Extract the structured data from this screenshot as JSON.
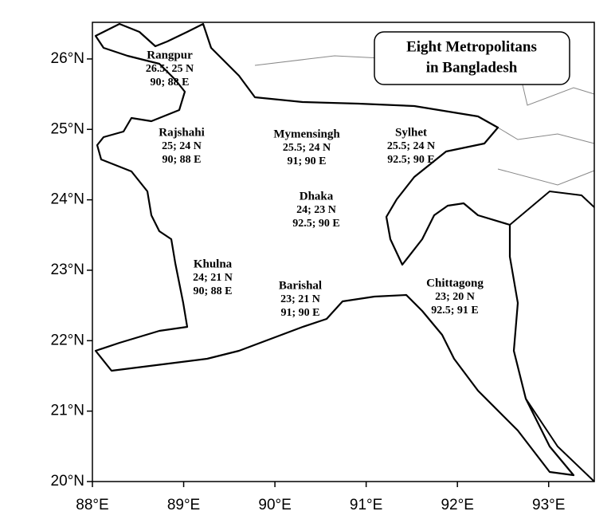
{
  "map": {
    "title": [
      "Eight Metropolitans",
      "in Bangladesh"
    ],
    "xlim": [
      88,
      93.5
    ],
    "ylim": [
      20,
      26.52
    ],
    "xticks": [
      {
        "value": 88,
        "label": "88°E"
      },
      {
        "value": 89,
        "label": "89°E"
      },
      {
        "value": 90,
        "label": "90°E"
      },
      {
        "value": 91,
        "label": "91°E"
      },
      {
        "value": 92,
        "label": "92°E"
      },
      {
        "value": 93,
        "label": "93°E"
      }
    ],
    "yticks": [
      {
        "value": 20,
        "label": "20°N"
      },
      {
        "value": 21,
        "label": "21°N"
      },
      {
        "value": 22,
        "label": "22°N"
      },
      {
        "value": 23,
        "label": "23°N"
      },
      {
        "value": 24,
        "label": "24°N"
      },
      {
        "value": 25,
        "label": "25°N"
      },
      {
        "value": 26,
        "label": "26°N"
      }
    ],
    "cities": [
      {
        "name": "Rangpur",
        "lat": "26.5; 25 N",
        "lon": "90; 88 E"
      },
      {
        "name": "Rajshahi",
        "lat": "25; 24 N",
        "lon": "90; 88 E"
      },
      {
        "name": "Mymensingh",
        "lat": "25.5; 24 N",
        "lon": "91; 90 E"
      },
      {
        "name": "Sylhet",
        "lat": "25.5; 24 N",
        "lon": "92.5; 90 E"
      },
      {
        "name": "Dhaka",
        "lat": "24; 23 N",
        "lon": "92.5; 90 E"
      },
      {
        "name": "Khulna",
        "lat": "24; 21 N",
        "lon": "90; 88 E"
      },
      {
        "name": "Barishal",
        "lat": "23; 21 N",
        "lon": "91; 90 E"
      },
      {
        "name": "Chittagong",
        "lat": "23; 20 N",
        "lon": "92.5; 91 E"
      }
    ]
  }
}
